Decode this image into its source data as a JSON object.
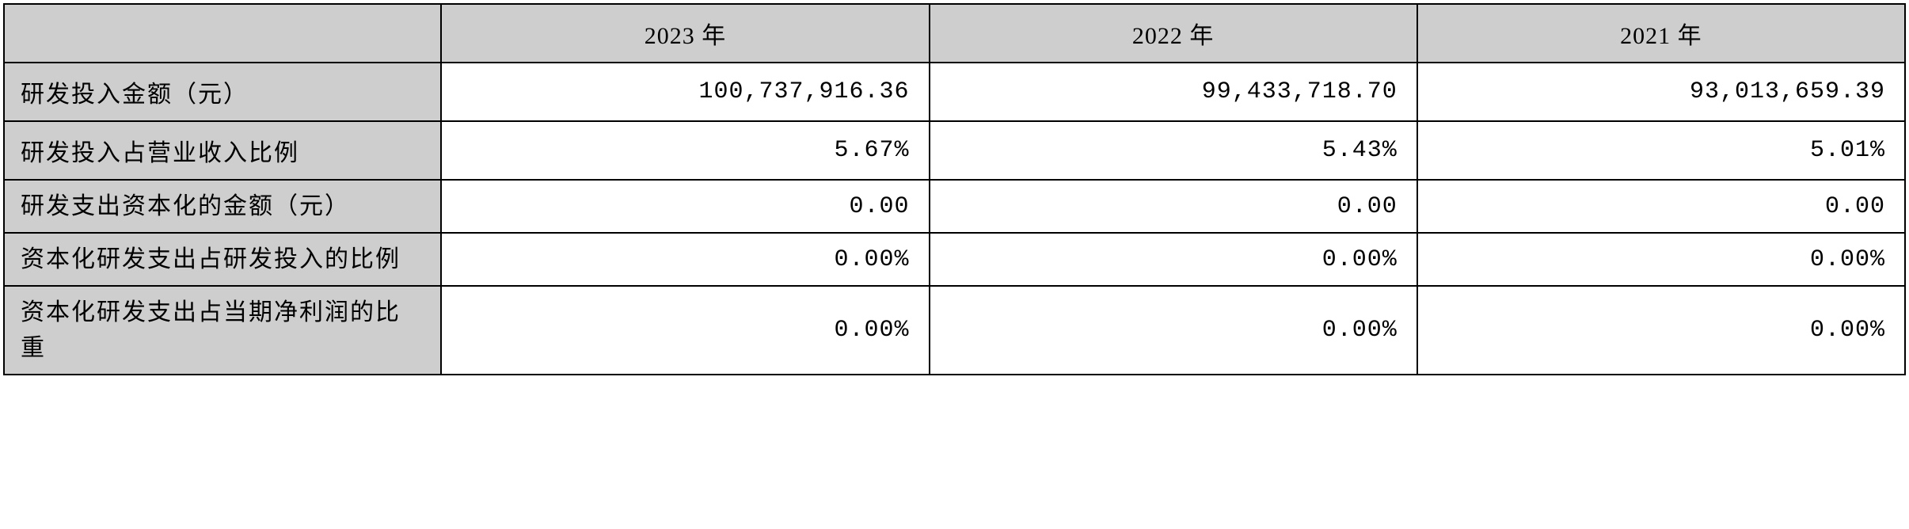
{
  "table": {
    "type": "table",
    "background_color": "#ffffff",
    "header_background_color": "#cecece",
    "label_background_color": "#cecece",
    "border_color": "#000000",
    "font_size": 30,
    "columns": [
      {
        "label": "",
        "width_pct": 23
      },
      {
        "label": "2023 年",
        "width_pct": 25.66
      },
      {
        "label": "2022 年",
        "width_pct": 25.66
      },
      {
        "label": "2021 年",
        "width_pct": 25.66
      }
    ],
    "rows": [
      {
        "label": "研发投入金额（元）",
        "values": [
          "100,737,916.36",
          "99,433,718.70",
          "93,013,659.39"
        ]
      },
      {
        "label": "研发投入占营业收入比例",
        "values": [
          "5.67%",
          "5.43%",
          "5.01%"
        ]
      },
      {
        "label": "研发支出资本化的金额（元）",
        "values": [
          "0.00",
          "0.00",
          "0.00"
        ]
      },
      {
        "label": "资本化研发支出占研发投入的比例",
        "values": [
          "0.00%",
          "0.00%",
          "0.00%"
        ]
      },
      {
        "label": "资本化研发支出占当期净利润的比重",
        "values": [
          "0.00%",
          "0.00%",
          "0.00%"
        ]
      }
    ]
  }
}
